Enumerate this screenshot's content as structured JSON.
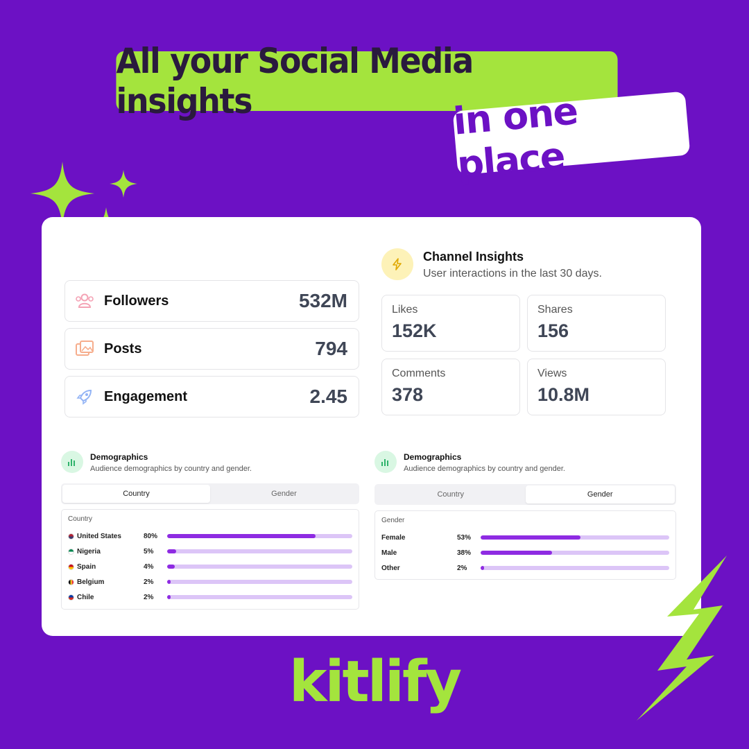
{
  "headline": {
    "line1": "All your Social Media insights",
    "line2": "in one place"
  },
  "stats": [
    {
      "icon": "users-icon",
      "label": "Followers",
      "value": "532M"
    },
    {
      "icon": "images-icon",
      "label": "Posts",
      "value": "794"
    },
    {
      "icon": "rocket-icon",
      "label": "Engagement",
      "value": "2.45"
    }
  ],
  "channel_insights": {
    "icon": "lightning-icon",
    "title": "Channel Insights",
    "subtitle": "User interactions in the last 30 days.",
    "metrics": [
      {
        "label": "Likes",
        "value": "152K"
      },
      {
        "label": "Shares",
        "value": "156"
      },
      {
        "label": "Comments",
        "value": "378"
      },
      {
        "label": "Views",
        "value": "10.8M"
      }
    ]
  },
  "demographics_country": {
    "icon": "bar-chart-icon",
    "title": "Demographics",
    "subtitle": "Audience demographics by country and gender.",
    "tabs": [
      "Country",
      "Gender"
    ],
    "active_tab": "Country",
    "panel_heading": "Country",
    "rows": [
      {
        "name": "United States",
        "pct": "80%",
        "value": 80,
        "flag_colors": [
          "#b22234",
          "#3c3b6e"
        ]
      },
      {
        "name": "Nigeria",
        "pct": "5%",
        "value": 5,
        "flag_colors": [
          "#008751",
          "#ffffff"
        ]
      },
      {
        "name": "Spain",
        "pct": "4%",
        "value": 4,
        "flag_colors": [
          "#c60b1e",
          "#ffc400"
        ]
      },
      {
        "name": "Belgium",
        "pct": "2%",
        "value": 2,
        "flag_colors": [
          "#000000",
          "#fdda24",
          "#ef3340"
        ]
      },
      {
        "name": "Chile",
        "pct": "2%",
        "value": 2,
        "flag_colors": [
          "#0039a6",
          "#d52b1e"
        ]
      }
    ]
  },
  "demographics_gender": {
    "icon": "bar-chart-icon",
    "title": "Demographics",
    "subtitle": "Audience demographics by country and gender.",
    "tabs": [
      "Country",
      "Gender"
    ],
    "active_tab": "Gender",
    "panel_heading": "Gender",
    "rows": [
      {
        "name": "Female",
        "pct": "53%",
        "value": 53
      },
      {
        "name": "Male",
        "pct": "38%",
        "value": 38
      },
      {
        "name": "Other",
        "pct": "2%",
        "value": 2
      }
    ]
  },
  "brand": "kitlify",
  "colors": {
    "background": "#6c11c4",
    "accent_green": "#a4e43d",
    "bar_fill": "#8e2be2",
    "bar_track": "#dcc5f7"
  }
}
